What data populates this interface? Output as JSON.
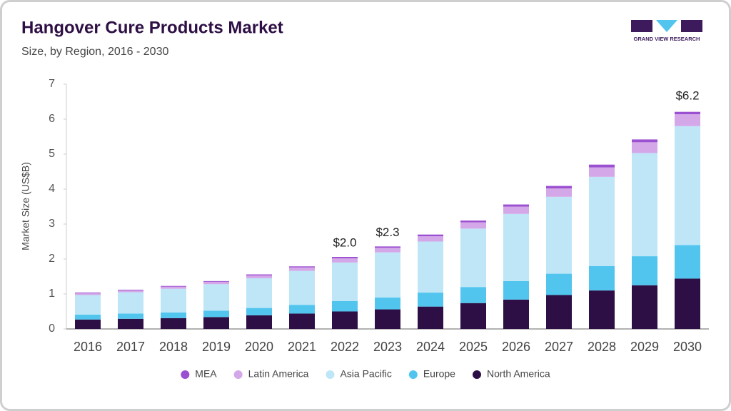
{
  "chart_data": {
    "type": "stacked_bar",
    "title": "Hangover Cure Products Market",
    "subtitle": "Size, by Region, 2016 - 2030",
    "logo_text": "GRAND VIEW RESEARCH",
    "y_label": "Market Size (US$B)",
    "categories": [
      "2016",
      "2017",
      "2018",
      "2019",
      "2020",
      "2021",
      "2022",
      "2023",
      "2024",
      "2025",
      "2026",
      "2027",
      "2028",
      "2029",
      "2030"
    ],
    "series": [
      {
        "name": "North America",
        "color": "#2e0f45",
        "values": [
          0.27,
          0.29,
          0.31,
          0.34,
          0.39,
          0.44,
          0.5,
          0.56,
          0.64,
          0.74,
          0.84,
          0.97,
          1.1,
          1.25,
          1.44
        ]
      },
      {
        "name": "Europe",
        "color": "#52c5ef",
        "values": [
          0.14,
          0.15,
          0.16,
          0.18,
          0.21,
          0.25,
          0.3,
          0.34,
          0.4,
          0.46,
          0.53,
          0.61,
          0.7,
          0.83,
          0.96
        ]
      },
      {
        "name": "Asia Pacific",
        "color": "#bfe6f7",
        "values": [
          0.56,
          0.61,
          0.68,
          0.76,
          0.85,
          0.97,
          1.1,
          1.29,
          1.46,
          1.67,
          1.92,
          2.2,
          2.55,
          2.95,
          3.4
        ]
      },
      {
        "name": "Latin America",
        "color": "#d4a8e8",
        "values": [
          0.05,
          0.05,
          0.06,
          0.07,
          0.08,
          0.1,
          0.12,
          0.13,
          0.15,
          0.18,
          0.21,
          0.24,
          0.27,
          0.31,
          0.34
        ]
      },
      {
        "name": "MEA",
        "color": "#9b4fd1",
        "values": [
          0.02,
          0.02,
          0.02,
          0.02,
          0.03,
          0.03,
          0.04,
          0.04,
          0.05,
          0.05,
          0.06,
          0.07,
          0.08,
          0.08,
          0.07
        ]
      }
    ],
    "annotations": [
      {
        "category": "2022",
        "value": 2.0,
        "label": "$2.0"
      },
      {
        "category": "2023",
        "value": 2.3,
        "label": "$2.3"
      },
      {
        "category": "2030",
        "value": 6.2,
        "label": "$6.2"
      }
    ],
    "ylim": [
      0,
      7
    ],
    "yticks": [
      0,
      1,
      2,
      3,
      4,
      5,
      6,
      7
    ],
    "grid": false,
    "legend": "bottom"
  }
}
